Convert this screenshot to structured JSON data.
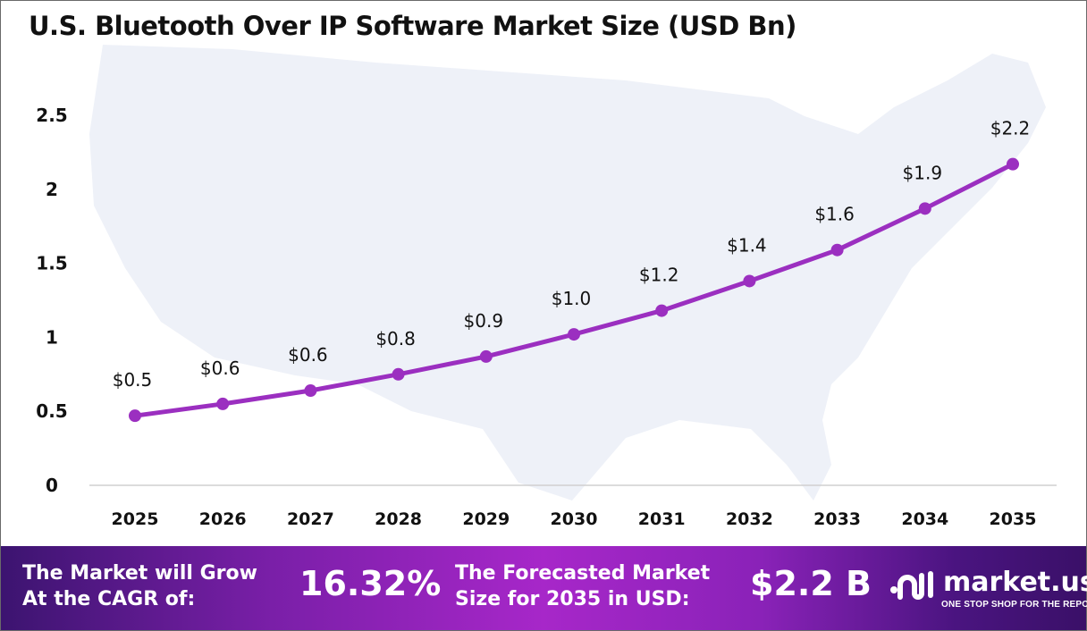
{
  "title": "U.S. Bluetooth Over IP Software Market Size (USD Bn)",
  "chart_data": {
    "type": "line",
    "title": "U.S. Bluetooth Over IP Software Market Size (USD Bn)",
    "categories": [
      "2025",
      "2026",
      "2027",
      "2028",
      "2029",
      "2030",
      "2031",
      "2032",
      "2033",
      "2034",
      "2035"
    ],
    "values": [
      0.47,
      0.55,
      0.64,
      0.75,
      0.87,
      1.02,
      1.18,
      1.38,
      1.59,
      1.87,
      2.17
    ],
    "data_labels": [
      "$0.5",
      "$0.6",
      "$0.6",
      "$0.8",
      "$0.9",
      "$1.0",
      "$1.2",
      "$1.4",
      "$1.6",
      "$1.9",
      "$2.2"
    ],
    "y_ticks": [
      "0",
      "0.5",
      "1",
      "1.5",
      "2",
      "2.5"
    ],
    "ylim": [
      0,
      2.5
    ],
    "grid": false,
    "line_color": "#9b2fc0",
    "background": "US map silhouette"
  },
  "footer": {
    "cagr_label_1": "The Market will Grow",
    "cagr_label_2": "At the CAGR of:",
    "cagr_value": "16.32%",
    "forecast_label_1": "The Forecasted Market",
    "forecast_label_2": "Size for 2035 in USD:",
    "forecast_value": "$2.2 B",
    "brand": "market.us",
    "brand_tagline": "ONE STOP SHOP FOR THE REPORTS"
  }
}
